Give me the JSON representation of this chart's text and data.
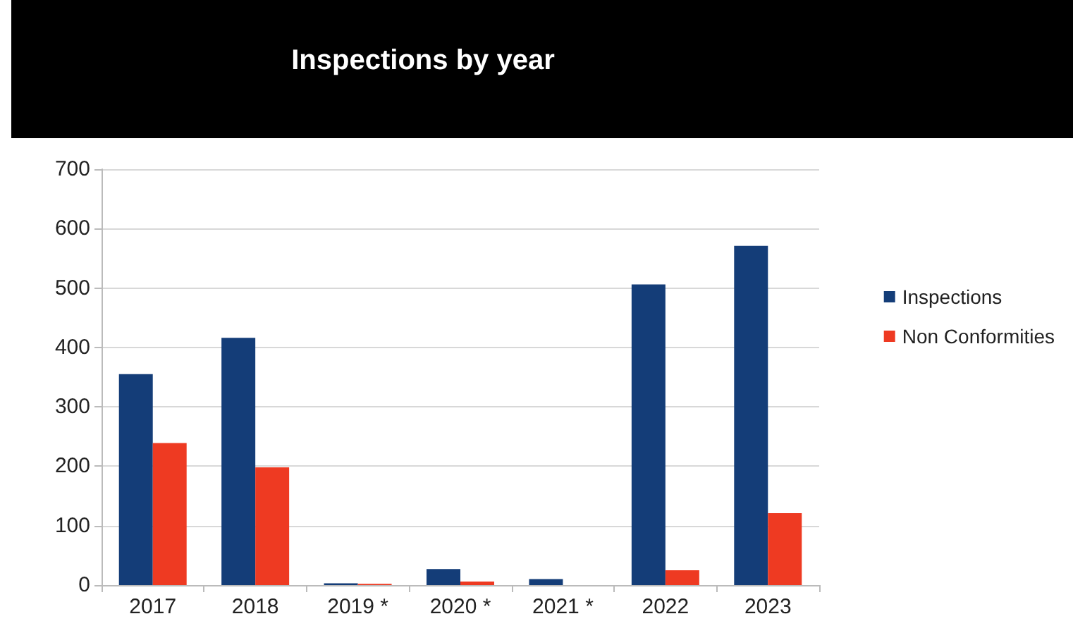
{
  "chart_data": {
    "type": "bar",
    "title": "Inspections by year",
    "categories": [
      "2017",
      "2018",
      "2019 *",
      "2020 *",
      "2021 *",
      "2022",
      "2023"
    ],
    "series": [
      {
        "name": "Inspections",
        "color": "#143d78",
        "values": [
          355,
          416,
          3,
          27,
          10,
          506,
          571
        ]
      },
      {
        "name": "Non Conformities",
        "color": "#ee3a22",
        "values": [
          239,
          198,
          2,
          6,
          0,
          25,
          121
        ]
      }
    ],
    "ylim": [
      0,
      700
    ],
    "yticks": [
      0,
      100,
      200,
      300,
      400,
      500,
      600,
      700
    ],
    "grid": "y",
    "legend": "right"
  }
}
